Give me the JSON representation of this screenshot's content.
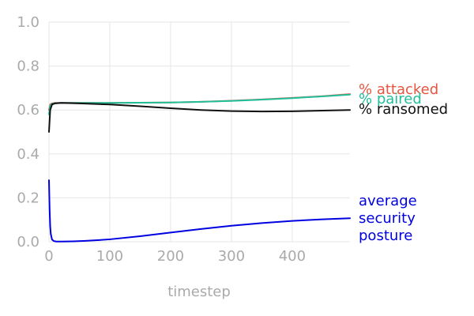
{
  "chart_data": {
    "type": "line",
    "title": "",
    "xlabel": "timestep",
    "ylabel": "",
    "xlim": [
      0,
      495
    ],
    "ylim": [
      0,
      1
    ],
    "x_ticks": [
      0,
      100,
      200,
      300,
      400
    ],
    "y_ticks": [
      0.0,
      0.2,
      0.4,
      0.6,
      0.8,
      1.0
    ],
    "x_tick_labels": [
      "0",
      "100",
      "200",
      "300",
      "400"
    ],
    "y_tick_labels": [
      "0.0",
      "0.2",
      "0.4",
      "0.6",
      "0.8",
      "1.0"
    ],
    "grid": true,
    "legend": "direct labels at right end of lines",
    "series": [
      {
        "name": "% attacked",
        "color": "#e8543f",
        "x": [
          0,
          2,
          5,
          10,
          20,
          50,
          100,
          150,
          200,
          250,
          300,
          350,
          400,
          450,
          495
        ],
        "y": [
          0.6,
          0.625,
          0.63,
          0.632,
          0.632,
          0.632,
          0.632,
          0.633,
          0.634,
          0.637,
          0.642,
          0.648,
          0.655,
          0.663,
          0.672
        ]
      },
      {
        "name": "% paired",
        "color": "#1fbf9a",
        "x": [
          0,
          2,
          5,
          10,
          20,
          50,
          100,
          150,
          200,
          250,
          300,
          350,
          400,
          450,
          495
        ],
        "y": [
          0.58,
          0.62,
          0.628,
          0.631,
          0.632,
          0.632,
          0.632,
          0.633,
          0.634,
          0.637,
          0.641,
          0.647,
          0.654,
          0.662,
          0.67
        ]
      },
      {
        "name": "% ransomed",
        "color": "#111111",
        "x": [
          0,
          2,
          5,
          10,
          20,
          50,
          100,
          150,
          200,
          250,
          300,
          350,
          400,
          450,
          495
        ],
        "y": [
          0.5,
          0.6,
          0.625,
          0.63,
          0.632,
          0.63,
          0.625,
          0.617,
          0.608,
          0.6,
          0.595,
          0.593,
          0.594,
          0.597,
          0.6
        ]
      },
      {
        "name": "average security posture",
        "label_lines": [
          "average",
          "security",
          "posture"
        ],
        "color": "#0000e0",
        "x": [
          0,
          1,
          2,
          3,
          5,
          8,
          12,
          20,
          40,
          60,
          80,
          100,
          150,
          200,
          250,
          300,
          350,
          400,
          450,
          495
        ],
        "y": [
          0.28,
          0.15,
          0.07,
          0.035,
          0.01,
          0.003,
          0.001,
          0.001,
          0.002,
          0.004,
          0.007,
          0.011,
          0.025,
          0.042,
          0.058,
          0.073,
          0.085,
          0.095,
          0.102,
          0.107
        ]
      }
    ]
  }
}
